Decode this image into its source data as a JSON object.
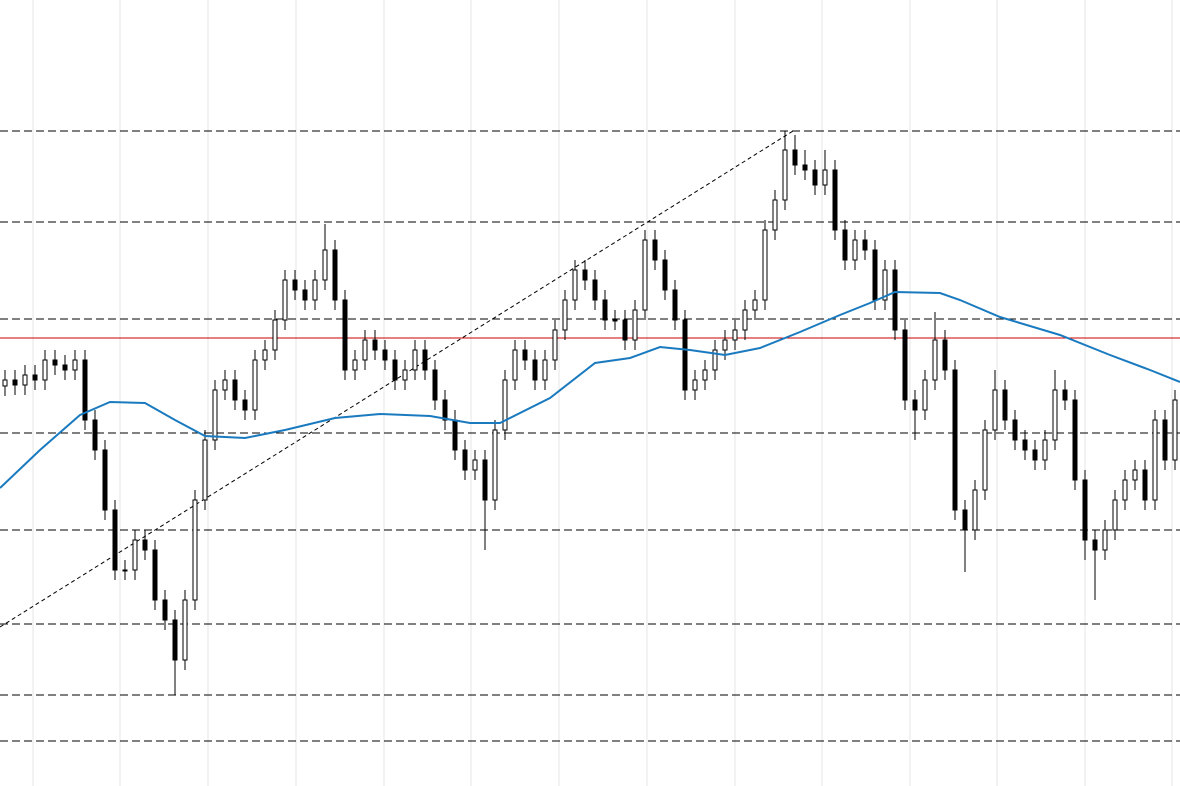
{
  "chart_data": {
    "type": "candlestick",
    "xlim": [
      -0.5,
      117.5
    ],
    "ylim": [
      0,
      786
    ],
    "xticks": [
      2.8,
      11.5,
      20.3,
      29.1,
      37.9,
      46.6,
      55.4,
      64.2,
      73,
      81.7,
      90.5,
      99.2,
      108,
      116.7
    ],
    "grid": true,
    "grid_color": "#e6e6e6",
    "candles": {
      "up_color": "#ffffff",
      "down_color": "#000000",
      "edge_color": "#000000",
      "open": [
        400,
        406,
        401,
        411,
        406,
        426,
        421,
        416,
        426,
        366,
        336,
        276,
        216,
        216,
        246,
        236,
        186,
        166,
        126,
        186,
        286,
        346,
        396,
        406,
        386,
        376,
        426,
        436,
        466,
        506,
        496,
        486,
        506,
        536,
        486,
        416,
        426,
        446,
        436,
        426,
        406,
        416,
        436,
        416,
        386,
        366,
        336,
        316,
        326,
        286,
        356,
        406,
        436,
        426,
        406,
        426,
        456,
        486,
        516,
        506,
        486,
        466,
        466,
        446,
        476,
        546,
        526,
        496,
        466,
        396,
        406,
        416,
        436,
        446,
        456,
        476,
        486,
        556,
        586,
        636,
        621,
        616,
        601,
        616,
        556,
        526,
        546,
        536,
        486,
        516,
        456,
        386,
        376,
        406,
        446,
        416,
        276,
        256,
        296,
        356,
        396,
        366,
        346,
        336,
        326,
        346,
        396,
        386,
        306,
        246,
        236,
        256,
        286,
        306,
        316,
        286,
        366,
        326
      ],
      "high": [
        416,
        416,
        421,
        421,
        436,
        436,
        431,
        436,
        436,
        376,
        346,
        286,
        226,
        256,
        256,
        246,
        196,
        176,
        196,
        296,
        356,
        406,
        416,
        416,
        396,
        436,
        446,
        476,
        516,
        516,
        506,
        516,
        562,
        546,
        496,
        436,
        456,
        456,
        446,
        436,
        426,
        446,
        446,
        426,
        396,
        376,
        346,
        336,
        336,
        366,
        416,
        446,
        446,
        436,
        436,
        466,
        496,
        526,
        526,
        516,
        496,
        476,
        476,
        486,
        556,
        556,
        536,
        506,
        476,
        416,
        426,
        446,
        456,
        466,
        486,
        496,
        566,
        596,
        655,
        651,
        636,
        626,
        636,
        626,
        566,
        556,
        556,
        546,
        526,
        526,
        466,
        396,
        416,
        474,
        456,
        426,
        286,
        306,
        366,
        416,
        406,
        376,
        356,
        346,
        356,
        416,
        406,
        396,
        316,
        256,
        266,
        296,
        316,
        326,
        326,
        376,
        376,
        396
      ],
      "low": [
        390,
        391,
        391,
        396,
        396,
        411,
        406,
        406,
        356,
        326,
        266,
        206,
        206,
        206,
        226,
        176,
        156,
        91,
        116,
        176,
        276,
        336,
        386,
        376,
        366,
        366,
        416,
        426,
        456,
        486,
        476,
        476,
        496,
        476,
        406,
        406,
        416,
        426,
        416,
        396,
        396,
        406,
        406,
        376,
        356,
        326,
        306,
        306,
        236,
        276,
        346,
        396,
        416,
        396,
        396,
        416,
        446,
        476,
        496,
        476,
        456,
        456,
        436,
        436,
        466,
        516,
        486,
        456,
        386,
        386,
        396,
        406,
        426,
        436,
        446,
        466,
        476,
        546,
        576,
        611,
        606,
        591,
        591,
        546,
        516,
        516,
        526,
        476,
        476,
        446,
        376,
        346,
        366,
        396,
        406,
        266,
        214,
        246,
        286,
        346,
        356,
        336,
        326,
        316,
        316,
        336,
        376,
        296,
        226,
        186,
        226,
        246,
        276,
        296,
        276,
        276,
        316,
        316
      ],
      "close": [
        406,
        401,
        411,
        406,
        426,
        421,
        416,
        426,
        366,
        336,
        276,
        216,
        216,
        246,
        236,
        186,
        166,
        126,
        186,
        286,
        346,
        396,
        406,
        386,
        376,
        426,
        436,
        466,
        506,
        496,
        486,
        506,
        536,
        486,
        416,
        426,
        446,
        436,
        426,
        406,
        416,
        436,
        416,
        386,
        366,
        336,
        316,
        326,
        286,
        356,
        406,
        436,
        426,
        406,
        426,
        456,
        486,
        516,
        506,
        486,
        466,
        466,
        446,
        476,
        546,
        526,
        496,
        466,
        396,
        406,
        416,
        436,
        446,
        456,
        476,
        486,
        556,
        586,
        636,
        621,
        616,
        601,
        616,
        556,
        526,
        546,
        536,
        486,
        516,
        456,
        386,
        376,
        406,
        446,
        416,
        276,
        256,
        296,
        356,
        396,
        366,
        346,
        336,
        326,
        346,
        396,
        386,
        306,
        246,
        236,
        256,
        286,
        306,
        316,
        286,
        366,
        326,
        386
      ]
    },
    "ma": {
      "color": "#1a7abf",
      "x": [
        -0.5,
        3.5,
        7.5,
        10.5,
        14,
        17,
        20,
        24,
        28,
        33,
        37.5,
        42.5,
        46.5,
        49.5,
        54.5,
        59,
        62.5,
        65.5,
        68.5,
        72,
        75.5,
        79.5,
        83.5,
        86.5,
        89,
        93.5,
        95.5,
        99.5,
        105.5,
        110.5,
        114.5,
        117.5
      ],
      "values": [
        298,
        336,
        371,
        384,
        383,
        366,
        350,
        348,
        356,
        368,
        372,
        370,
        363,
        363,
        388,
        423,
        428,
        439,
        436,
        431,
        438,
        454,
        471,
        483,
        494,
        493,
        486,
        469,
        451,
        431,
        416,
        404
      ]
    },
    "levels": [
      655,
      564,
      467,
      353,
      256,
      162,
      91,
      45
    ],
    "level_color": "#000000",
    "highlight_level": 448,
    "highlight_color": "#cc0000",
    "trendline": {
      "x": [
        -0.5,
        78.8
      ],
      "values": [
        159,
        655
      ],
      "color": "#000000"
    }
  }
}
